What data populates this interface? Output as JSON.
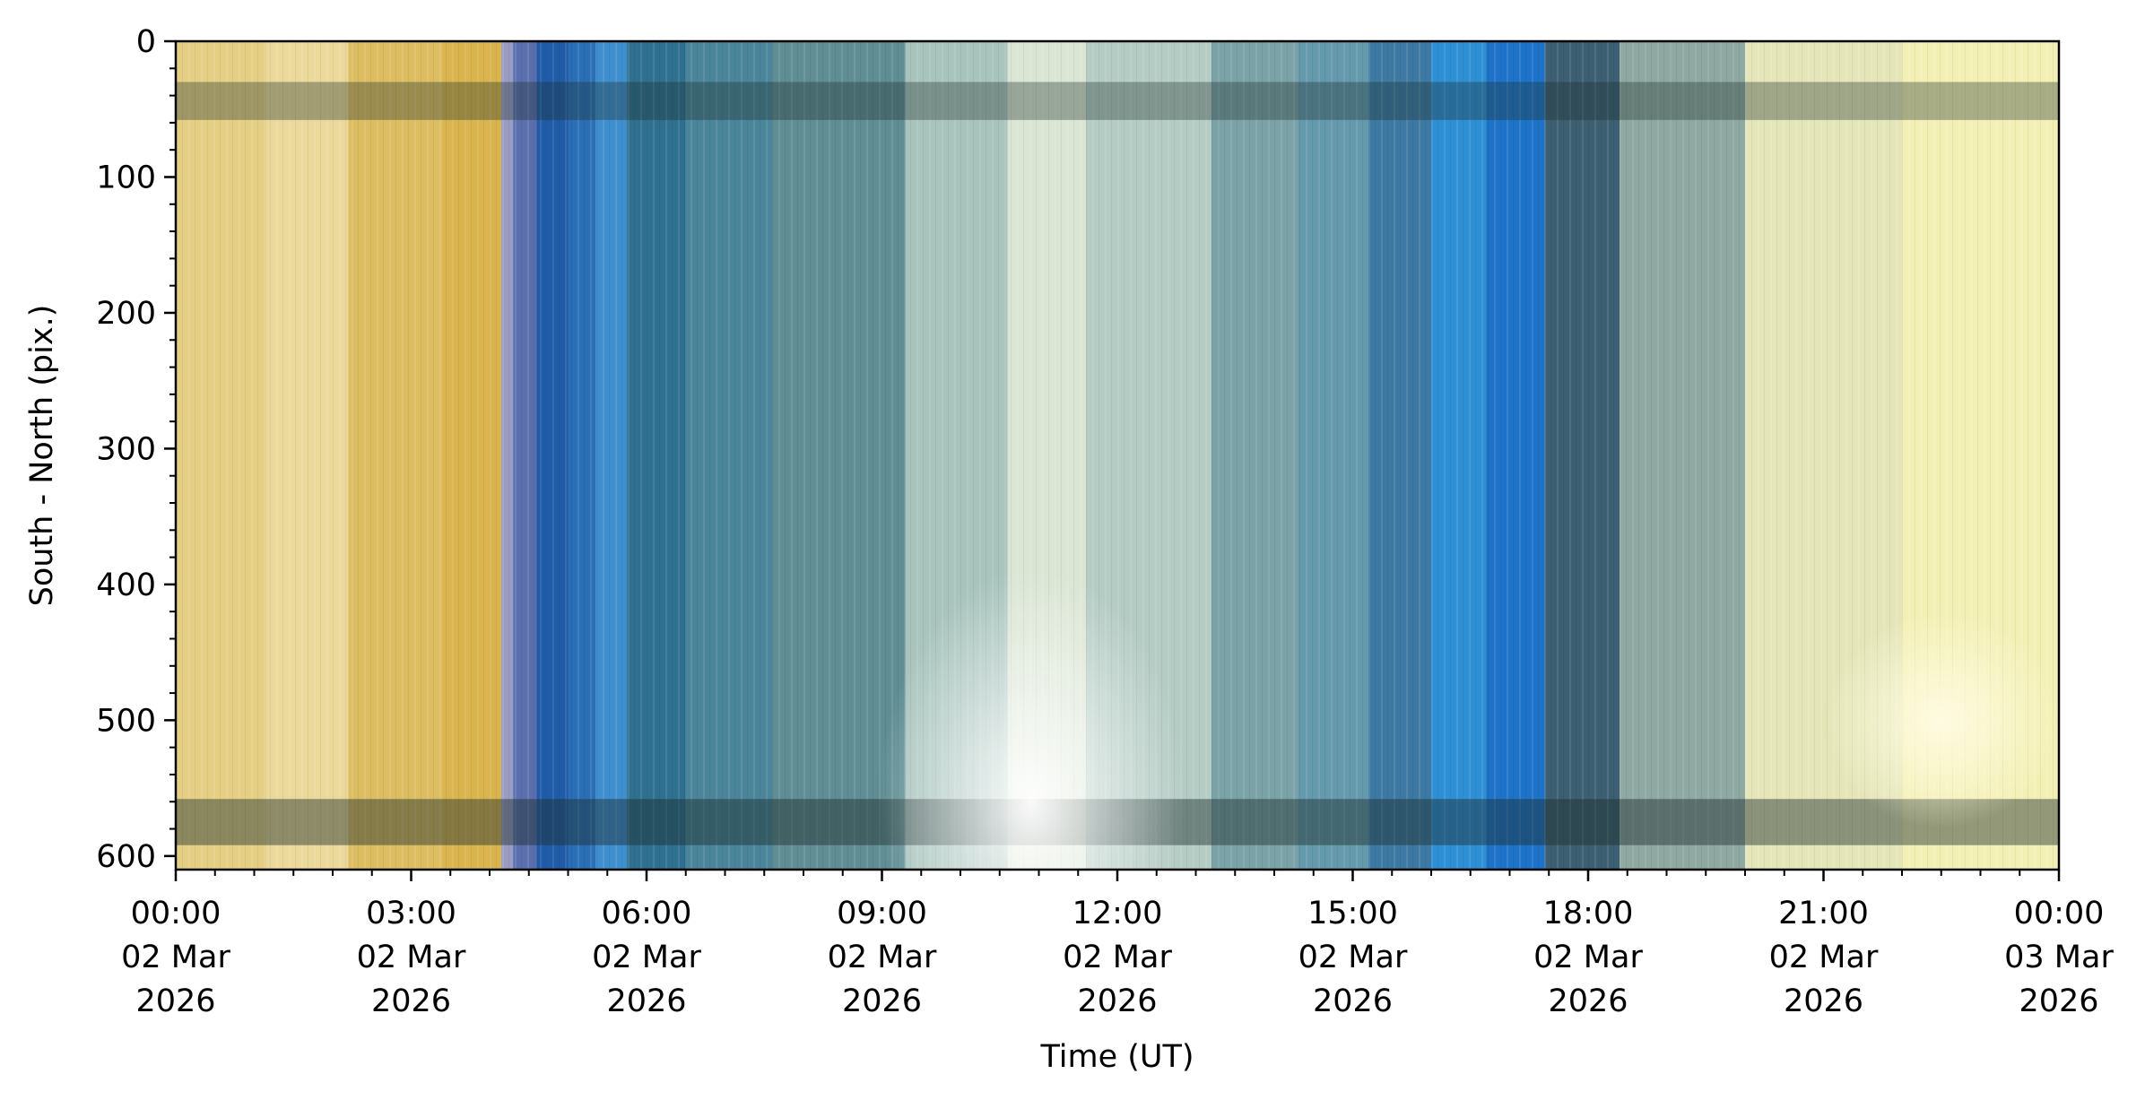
{
  "chart_data": {
    "type": "heatmap",
    "title": "",
    "xlabel": "Time (UT)",
    "ylabel": "South - North (pix.)",
    "x_range_hours": [
      0,
      24
    ],
    "ylim": [
      610,
      0
    ],
    "y_ticks": [
      0,
      100,
      200,
      300,
      400,
      500,
      600
    ],
    "x_major_ticks": [
      {
        "hour": 0,
        "label": [
          "00:00",
          "02 Mar",
          "2026"
        ]
      },
      {
        "hour": 3,
        "label": [
          "03:00",
          "02 Mar",
          "2026"
        ]
      },
      {
        "hour": 6,
        "label": [
          "06:00",
          "02 Mar",
          "2026"
        ]
      },
      {
        "hour": 9,
        "label": [
          "09:00",
          "02 Mar",
          "2026"
        ]
      },
      {
        "hour": 12,
        "label": [
          "12:00",
          "02 Mar",
          "2026"
        ]
      },
      {
        "hour": 15,
        "label": [
          "15:00",
          "02 Mar",
          "2026"
        ]
      },
      {
        "hour": 18,
        "label": [
          "18:00",
          "02 Mar",
          "2026"
        ]
      },
      {
        "hour": 21,
        "label": [
          "21:00",
          "02 Mar",
          "2026"
        ]
      },
      {
        "hour": 24,
        "label": [
          "00:00",
          "03 Mar",
          "2026"
        ]
      }
    ],
    "x_minor_step_hours": 0.5,
    "y_minor_step": 20,
    "grid": false,
    "legend": "none",
    "time_bands": [
      {
        "start": 0.0,
        "end": 1.15,
        "color": "#e4cf85"
      },
      {
        "start": 1.15,
        "end": 2.2,
        "color": "#ead99a"
      },
      {
        "start": 2.2,
        "end": 3.4,
        "color": "#ddbd62"
      },
      {
        "start": 3.4,
        "end": 4.15,
        "color": "#d9b44f"
      },
      {
        "start": 4.15,
        "end": 4.3,
        "color": "#9a9cc4"
      },
      {
        "start": 4.3,
        "end": 4.6,
        "color": "#5b6fae"
      },
      {
        "start": 4.6,
        "end": 5.0,
        "color": "#1f5ba6"
      },
      {
        "start": 5.0,
        "end": 5.35,
        "color": "#2a6fb5"
      },
      {
        "start": 5.35,
        "end": 5.75,
        "color": "#3f8fcf"
      },
      {
        "start": 5.75,
        "end": 6.5,
        "color": "#2f6f90"
      },
      {
        "start": 6.5,
        "end": 7.6,
        "color": "#4a8599"
      },
      {
        "start": 7.6,
        "end": 9.3,
        "color": "#5f8d93"
      },
      {
        "start": 9.3,
        "end": 10.6,
        "color": "#a9c4bd"
      },
      {
        "start": 10.6,
        "end": 11.6,
        "color": "#dae5d4"
      },
      {
        "start": 11.6,
        "end": 13.2,
        "color": "#b5ccc4"
      },
      {
        "start": 13.2,
        "end": 14.3,
        "color": "#7aa2a7"
      },
      {
        "start": 14.3,
        "end": 15.2,
        "color": "#6599ac"
      },
      {
        "start": 15.2,
        "end": 16.0,
        "color": "#3d79a2"
      },
      {
        "start": 16.0,
        "end": 16.7,
        "color": "#2f8fd5"
      },
      {
        "start": 16.7,
        "end": 17.45,
        "color": "#1e73c8"
      },
      {
        "start": 17.45,
        "end": 18.4,
        "color": "#3d5f72"
      },
      {
        "start": 18.4,
        "end": 20.0,
        "color": "#8fa8a2"
      },
      {
        "start": 20.0,
        "end": 22.0,
        "color": "#e4e6b9"
      },
      {
        "start": 22.0,
        "end": 24.0,
        "color": "#f3f0b6"
      }
    ],
    "dark_rows": [
      {
        "from": 30,
        "to": 58,
        "opacity": 0.35
      },
      {
        "from": 558,
        "to": 592,
        "opacity": 0.45
      }
    ],
    "bright_region": {
      "hour": 10.9,
      "row": 560,
      "color": "#ffffff"
    },
    "bright_spot": {
      "hour": 22.5,
      "row": 500,
      "color": "#fffbe2"
    }
  }
}
